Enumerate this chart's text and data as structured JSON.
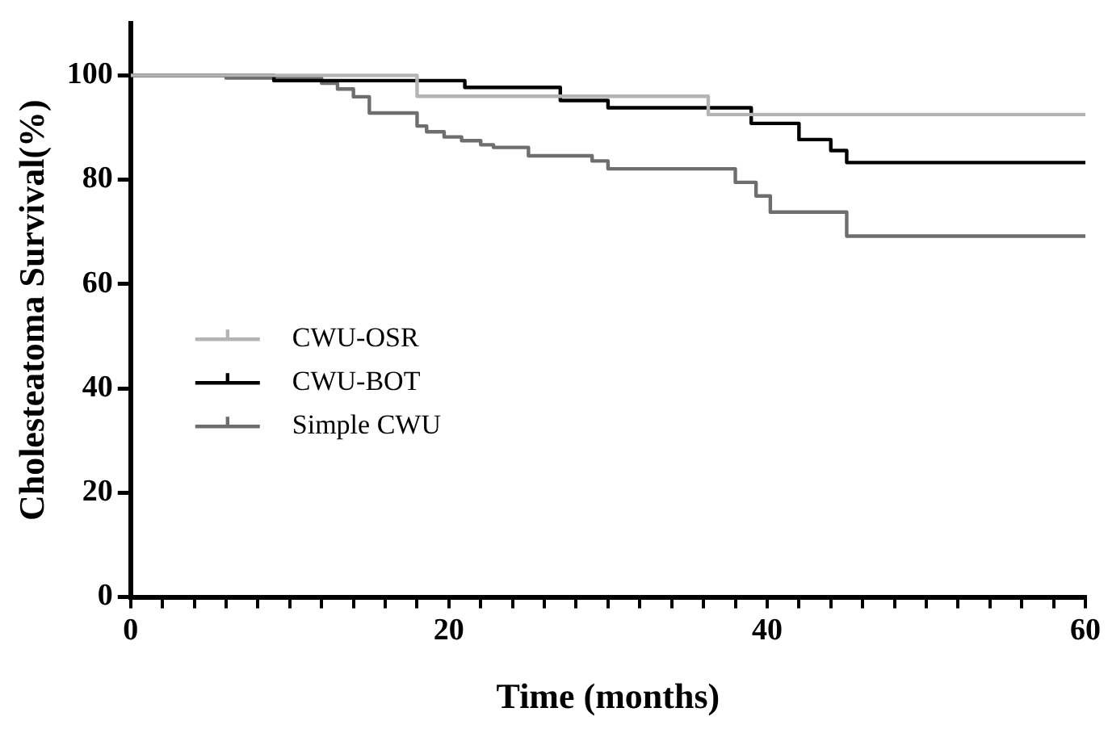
{
  "chart_data": {
    "type": "step",
    "xlabel": "Time (months)",
    "ylabel": "Cholesteatoma Survival(%)",
    "xlim": [
      0,
      60
    ],
    "ylim": [
      0,
      110
    ],
    "xticks": [
      0,
      {
        "value": 2,
        "label": null
      },
      {
        "value": 4,
        "label": null
      },
      {
        "value": 6,
        "label": null
      },
      {
        "value": 8,
        "label": null
      },
      {
        "value": 10,
        "label": null
      },
      {
        "value": 12,
        "label": null
      },
      {
        "value": 14,
        "label": null
      },
      {
        "value": 16,
        "label": null
      },
      {
        "value": 18,
        "label": null
      },
      20,
      {
        "value": 22,
        "label": null
      },
      {
        "value": 24,
        "label": null
      },
      {
        "value": 26,
        "label": null
      },
      {
        "value": 28,
        "label": null
      },
      {
        "value": 30,
        "label": null
      },
      {
        "value": 32,
        "label": null
      },
      {
        "value": 34,
        "label": null
      },
      {
        "value": 36,
        "label": null
      },
      {
        "value": 38,
        "label": null
      },
      40,
      {
        "value": 42,
        "label": null
      },
      {
        "value": 44,
        "label": null
      },
      {
        "value": 46,
        "label": null
      },
      {
        "value": 48,
        "label": null
      },
      {
        "value": 50,
        "label": null
      },
      {
        "value": 52,
        "label": null
      },
      {
        "value": 54,
        "label": null
      },
      {
        "value": 56,
        "label": null
      },
      {
        "value": 58,
        "label": null
      },
      60
    ],
    "yticks": [
      0,
      20,
      40,
      60,
      80,
      100
    ],
    "grid": false,
    "legend": "center left",
    "marker": "none",
    "line_style": "solid",
    "series": [
      {
        "name": "CWU-OSR",
        "color": "#b4b4b4",
        "x": [
          0,
          18,
          36.3,
          60
        ],
        "values": [
          100,
          96,
          92.5,
          92.5
        ]
      },
      {
        "name": "CWU-BOT",
        "color": "#000000",
        "x": [
          0,
          9,
          21,
          27,
          30,
          39,
          42,
          44,
          45,
          60
        ],
        "values": [
          100,
          99,
          97.7,
          95.2,
          93.8,
          90.8,
          87.7,
          85.6,
          83.3,
          83.3
        ]
      },
      {
        "name": "Simple CWU",
        "color": "#6e6e6e",
        "x": [
          0,
          6,
          12,
          13,
          14,
          15,
          18,
          18.6,
          19.7,
          20.8,
          22,
          22.8,
          25,
          29,
          30,
          38,
          39.3,
          40.2,
          45,
          60
        ],
        "values": [
          100,
          99.5,
          98.5,
          97.4,
          95.9,
          92.8,
          90.3,
          89.2,
          88.2,
          87.5,
          86.7,
          86.2,
          84.6,
          83.6,
          82.1,
          79.5,
          76.9,
          73.8,
          69.2,
          69.2
        ]
      }
    ]
  }
}
